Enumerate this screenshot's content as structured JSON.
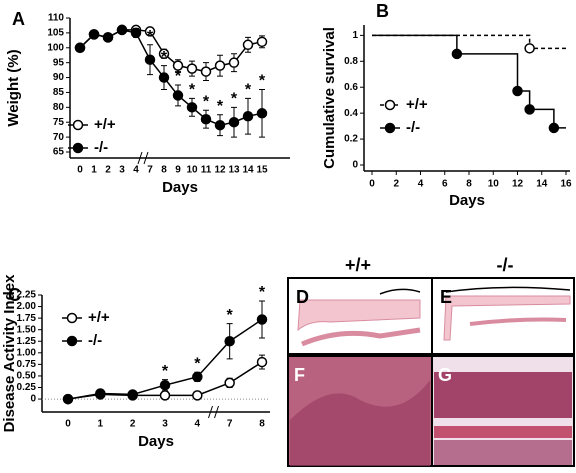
{
  "chart_data": [
    {
      "type": "line",
      "panel": "A",
      "x_label": "Days",
      "y_label": "Weight (%)",
      "categories": [
        "0",
        "1",
        "2",
        "3",
        "4",
        "7",
        "8",
        "9",
        "10",
        "11",
        "12",
        "13",
        "14",
        "15"
      ],
      "ylim": [
        65,
        110
      ],
      "yticks": [
        65,
        70,
        75,
        80,
        85,
        90,
        95,
        100,
        105,
        110
      ],
      "series": [
        {
          "name": "+/+",
          "color": "#000000",
          "marker_fill": "#ffffff",
          "values": [
            100,
            104.5,
            103.5,
            106,
            106,
            105.5,
            98,
            94,
            93,
            92,
            94,
            95,
            101,
            102
          ],
          "errors": [
            0,
            0.5,
            0.5,
            1,
            1,
            1,
            1.5,
            2,
            2.5,
            3,
            3.5,
            3,
            2.5,
            2
          ]
        },
        {
          "name": "-/-",
          "color": "#000000",
          "marker_fill": "#000000",
          "values": [
            100,
            104.5,
            103.5,
            106,
            105,
            96,
            90,
            84,
            80,
            76,
            74,
            75,
            77,
            78
          ],
          "errors": [
            0,
            0.5,
            0.5,
            1,
            1.5,
            5,
            4,
            3.5,
            3,
            3,
            3.5,
            5,
            6,
            8
          ],
          "markers": [
            null,
            null,
            null,
            null,
            null,
            "*",
            "*",
            "*",
            "*",
            "*",
            "*",
            "*",
            "*",
            "*"
          ]
        }
      ]
    },
    {
      "type": "step",
      "panel": "B",
      "x_label": "Days",
      "y_label": "Cumulative survival",
      "xlim": [
        0,
        16
      ],
      "xticks": [
        0,
        2,
        4,
        6,
        8,
        10,
        12,
        14,
        16
      ],
      "ylim": [
        0,
        1.08
      ],
      "yticks": [
        0,
        0.2,
        0.4,
        0.6,
        0.8,
        1
      ],
      "series": [
        {
          "name": "+/+",
          "color": "#000000",
          "marker_fill": "#ffffff",
          "dash": true,
          "x": [
            0,
            13,
            16
          ],
          "values": [
            1,
            0.9,
            0.9
          ]
        },
        {
          "name": "-/-",
          "color": "#000000",
          "marker_fill": "#000000",
          "dash": false,
          "x": [
            0,
            7,
            12,
            13,
            15,
            16
          ],
          "values": [
            1,
            0.857,
            0.571,
            0.429,
            0.286,
            0.286
          ]
        }
      ]
    },
    {
      "type": "line",
      "panel": "C",
      "x_label": "Days",
      "y_label": "Disease Activity Index",
      "categories": [
        "0",
        "1",
        "2",
        "3",
        "4",
        "7",
        "8"
      ],
      "ylim": [
        -0.15,
        2.25
      ],
      "yticks": [
        0,
        0.25,
        {
          "value": 0.5,
          "label": "0.50"
        },
        0.75,
        {
          "value": 1,
          "label": "1.00"
        },
        1.25,
        {
          "value": 1.5,
          "label": "1.50"
        },
        1.75,
        {
          "value": 2,
          "label": "2.00"
        },
        2.25
      ],
      "series": [
        {
          "name": "+/+",
          "color": "#000000",
          "marker_fill": "#ffffff",
          "values": [
            0,
            0.1,
            0.08,
            0.08,
            0.08,
            0.35,
            0.8
          ],
          "errors": [
            0,
            0.03,
            0.03,
            0.02,
            0.02,
            0.1,
            0.15
          ]
        },
        {
          "name": "-/-",
          "color": "#000000",
          "marker_fill": "#000000",
          "values": [
            0,
            0.12,
            0.1,
            0.3,
            0.48,
            1.25,
            1.72
          ],
          "errors": [
            0,
            0.03,
            0.03,
            0.12,
            0.1,
            0.38,
            0.4
          ],
          "markers": [
            null,
            null,
            null,
            "*",
            "*",
            "*",
            "*"
          ]
        }
      ]
    }
  ],
  "histology": {
    "columns": [
      "+/+",
      "-/-"
    ],
    "panels": [
      "D",
      "E",
      "F",
      "G"
    ]
  }
}
